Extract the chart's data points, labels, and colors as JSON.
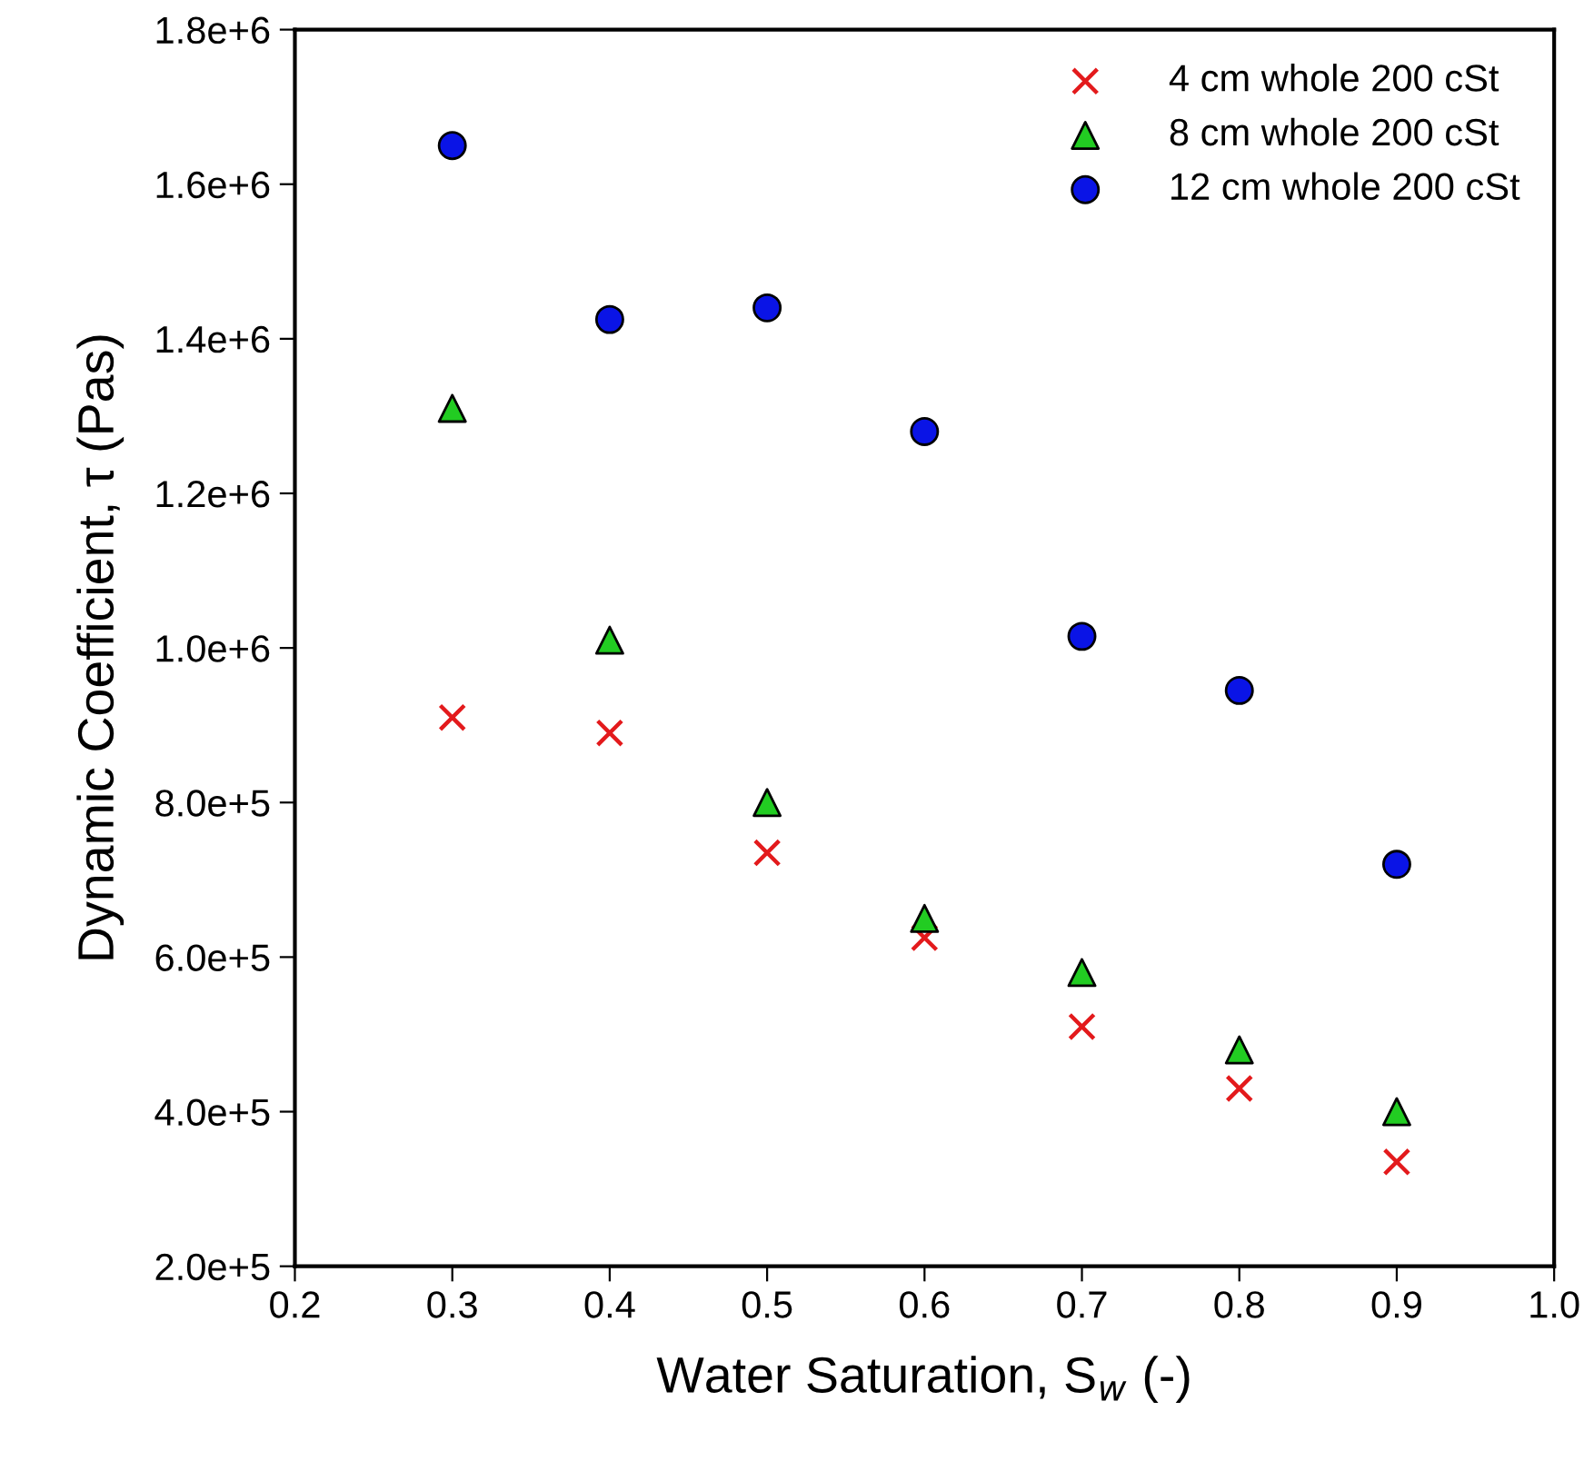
{
  "chart_data": {
    "type": "scatter",
    "xlabel": "Water Saturation, S$_{w}$ (-)",
    "ylabel": "Dynamic Coefficient, τ (Pas)",
    "x": [
      0.3,
      0.4,
      0.5,
      0.6,
      0.7,
      0.8,
      0.9
    ],
    "series": [
      {
        "name": "4 cm whole 200 cSt",
        "color": "#e31a1c",
        "marker": "cross",
        "values": [
          910000,
          890000,
          735000,
          625000,
          510000,
          430000,
          335000
        ]
      },
      {
        "name": "8 cm whole 200 cSt",
        "color": "#22cc22",
        "marker": "triangle",
        "values": [
          1310000,
          1010000,
          800000,
          650000,
          580000,
          480000,
          400000
        ]
      },
      {
        "name": "12 cm whole 200 cSt",
        "color": "#0a14e6",
        "marker": "circle",
        "values": [
          1650000,
          1425000,
          1440000,
          1280000,
          1015000,
          945000,
          720000
        ]
      }
    ],
    "xlim": [
      0.2,
      1.0
    ],
    "xticks": [
      {
        "value": 0.2,
        "label": "0.2"
      },
      {
        "value": 0.3,
        "label": "0.3"
      },
      {
        "value": 0.4,
        "label": "0.4"
      },
      {
        "value": 0.5,
        "label": "0.5"
      },
      {
        "value": 0.6,
        "label": "0.6"
      },
      {
        "value": 0.7,
        "label": "0.7"
      },
      {
        "value": 0.8,
        "label": "0.8"
      },
      {
        "value": 0.9,
        "label": "0.9"
      },
      {
        "value": 1.0,
        "label": "1.0"
      }
    ],
    "ylim": [
      200000,
      1800000
    ],
    "yticks": [
      {
        "value": 200000,
        "label": "2.0e+5"
      },
      {
        "value": 400000,
        "label": "4.0e+5"
      },
      {
        "value": 600000,
        "label": "6.0e+5"
      },
      {
        "value": 800000,
        "label": "8.0e+5"
      },
      {
        "value": 1000000,
        "label": "1.0e+6"
      },
      {
        "value": 1200000,
        "label": "1.2e+6"
      },
      {
        "value": 1400000,
        "label": "1.4e+6"
      },
      {
        "value": 1600000,
        "label": "1.6e+6"
      },
      {
        "value": 1800000,
        "label": "1.8e+6"
      }
    ],
    "grid": false,
    "legend": "top right"
  }
}
